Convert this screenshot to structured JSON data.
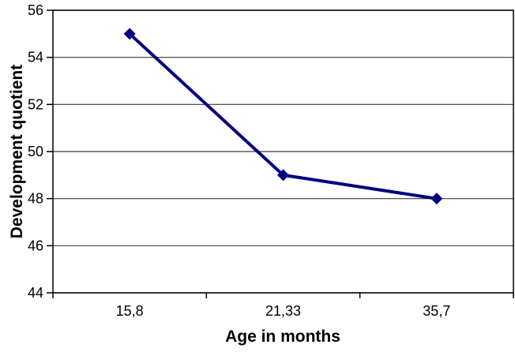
{
  "chart_data": {
    "type": "line",
    "title": "",
    "xlabel": "Age in months",
    "ylabel": "Development quotient",
    "x_axis_type": "category",
    "categories": [
      "15,8",
      "21,33",
      "35,7"
    ],
    "x_numeric": [
      15.8,
      21.33,
      35.7
    ],
    "series": [
      {
        "name": "Development quotient",
        "values": [
          55,
          49,
          48
        ],
        "color": "#000080",
        "marker": "diamond",
        "line_width": 4
      }
    ],
    "ylim": [
      44,
      56
    ],
    "yticks": [
      44,
      46,
      48,
      50,
      52,
      54,
      56
    ],
    "grid": "horizontal",
    "legend": "none",
    "axis_color": "#000000",
    "grid_color": "#3a3a3a",
    "background": "#ffffff",
    "tick_font_size": 18,
    "title_font_size": 21
  }
}
